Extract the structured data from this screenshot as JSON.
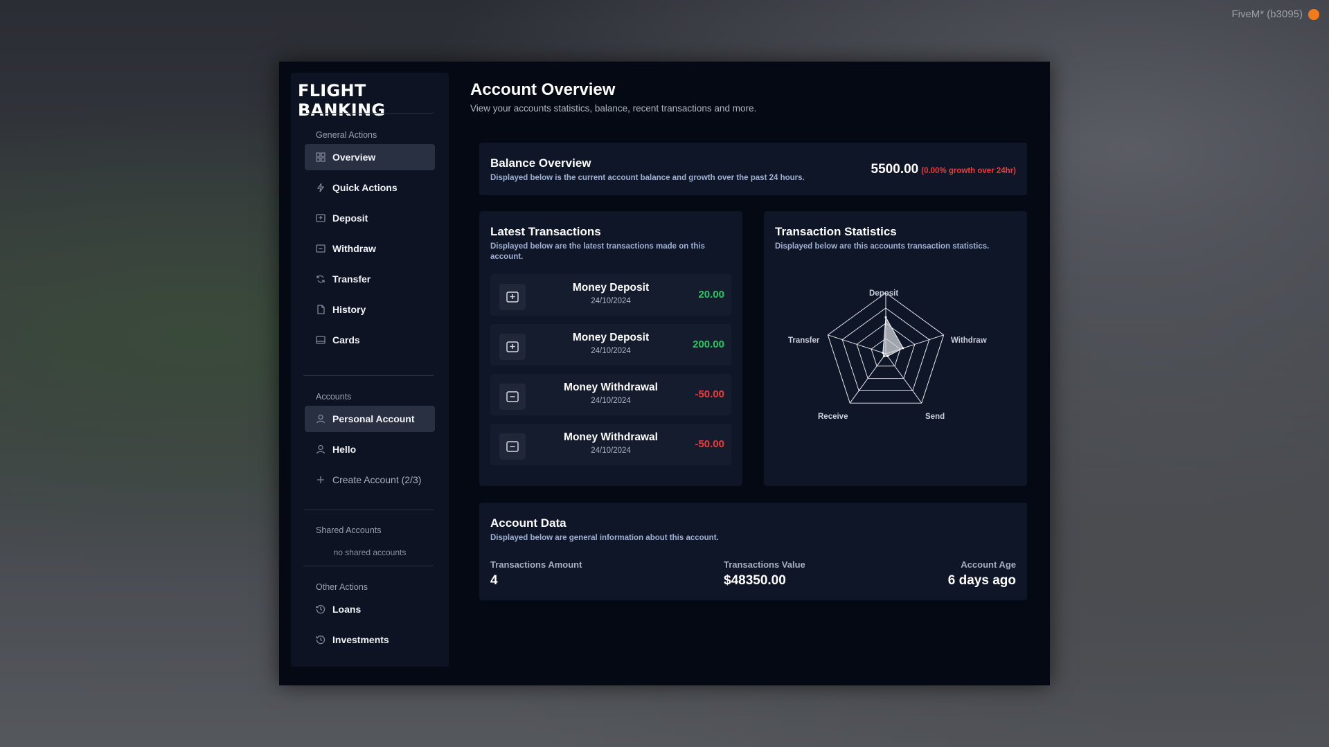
{
  "overlay": {
    "watermark": "FiveM* (b3095)"
  },
  "brand": "FLIGHT BANKING",
  "sidebar": {
    "general_label": "General Actions",
    "general_items": [
      {
        "label": "Overview",
        "icon": "grid-icon"
      },
      {
        "label": "Quick Actions",
        "icon": "lightning-icon"
      },
      {
        "label": "Deposit",
        "icon": "deposit-icon"
      },
      {
        "label": "Withdraw",
        "icon": "withdraw-icon"
      },
      {
        "label": "Transfer",
        "icon": "transfer-icon"
      },
      {
        "label": "History",
        "icon": "document-icon"
      },
      {
        "label": "Cards",
        "icon": "card-icon"
      }
    ],
    "accounts_label": "Accounts",
    "accounts": [
      {
        "label": "Personal Account",
        "icon": "user-icon"
      },
      {
        "label": "Hello",
        "icon": "user-icon"
      }
    ],
    "create_account": "Create Account (2/3)",
    "shared_label": "Shared Accounts",
    "shared_empty": "no shared accounts",
    "other_label": "Other Actions",
    "other_items": [
      {
        "label": "Loans",
        "icon": "history-icon"
      },
      {
        "label": "Investments",
        "icon": "history-icon"
      }
    ]
  },
  "header": {
    "title": "Account Overview",
    "subtitle": "View your accounts statistics, balance, recent transactions and more."
  },
  "balance": {
    "title": "Balance Overview",
    "subtitle": "Displayed below is the current account balance and growth over the past 24 hours.",
    "amount": "5500.00",
    "growth": "(0.00% growth over 24hr)"
  },
  "transactions": {
    "title": "Latest Transactions",
    "subtitle": "Displayed below are the latest transactions made on this account.",
    "items": [
      {
        "name": "Money Deposit",
        "date": "24/10/2024",
        "amount": "20.00",
        "type": "deposit"
      },
      {
        "name": "Money Deposit",
        "date": "24/10/2024",
        "amount": "200.00",
        "type": "deposit"
      },
      {
        "name": "Money Withdrawal",
        "date": "24/10/2024",
        "amount": "-50.00",
        "type": "withdrawal"
      },
      {
        "name": "Money Withdrawal",
        "date": "24/10/2024",
        "amount": "-50.00",
        "type": "withdrawal"
      }
    ]
  },
  "stats": {
    "title": "Transaction Statistics",
    "subtitle": "Displayed below are this accounts transaction statistics.",
    "labels": {
      "deposit": "Deposit",
      "withdraw": "Withdraw",
      "send": "Send",
      "receive": "Receive",
      "transfer": "Transfer"
    }
  },
  "account_data": {
    "title": "Account Data",
    "subtitle": "Displayed below are general information about this account.",
    "tx_amount_label": "Transactions Amount",
    "tx_amount": "4",
    "tx_value_label": "Transactions Value",
    "tx_value": "$48350.00",
    "age_label": "Account Age",
    "age": "6 days ago"
  },
  "chart_data": {
    "type": "radar",
    "categories": [
      "Deposit",
      "Withdraw",
      "Send",
      "Receive",
      "Transfer"
    ],
    "values": [
      0.6,
      0.3,
      0.05,
      0.05,
      0.05
    ],
    "rings": 4
  },
  "colors": {
    "positive": "#28c860",
    "negative": "#ef3b3b",
    "panel": "#0f1627",
    "background": "#050913"
  }
}
